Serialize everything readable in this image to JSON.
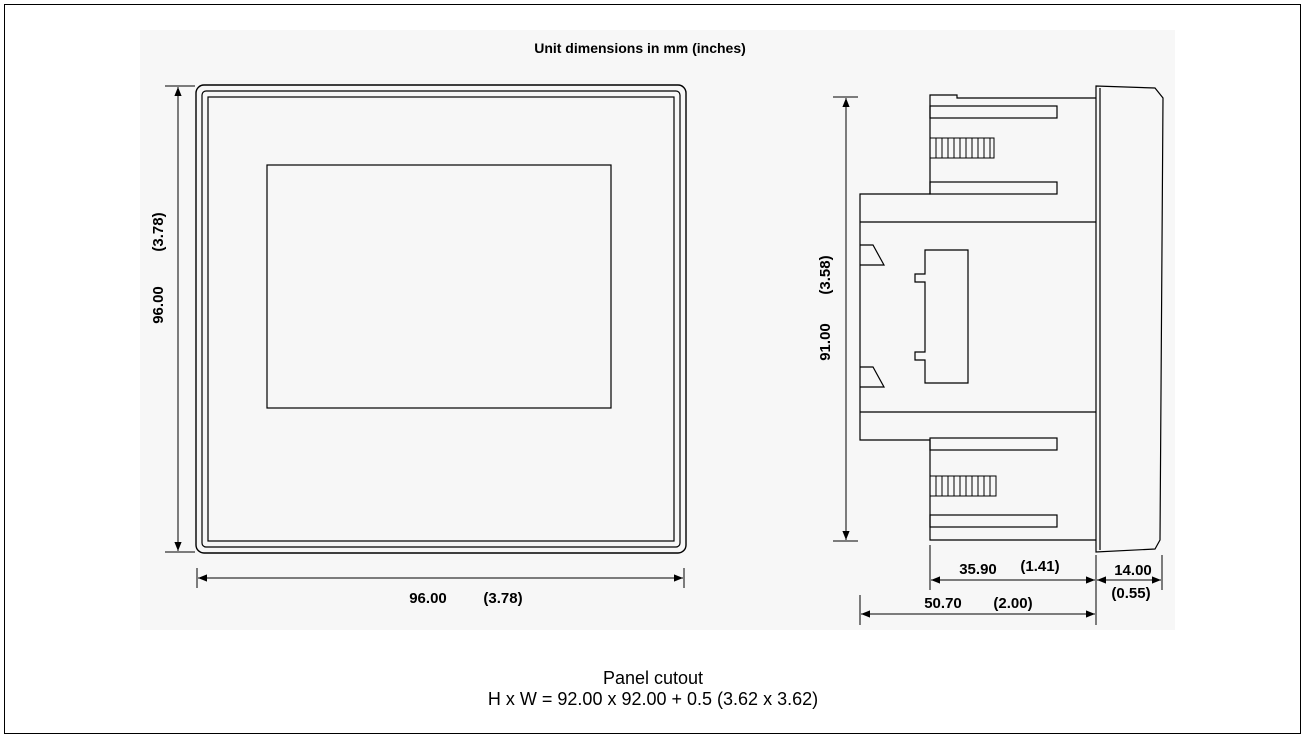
{
  "title": "Unit dimensions in mm (inches)",
  "front_view": {
    "height_mm": "96.00",
    "height_in": "(3.78)",
    "width_mm": "96.00",
    "width_in": "(3.78)"
  },
  "side_view": {
    "height_mm": "91.00",
    "height_in": "(3.58)",
    "depth_rear_mm": "35.90",
    "depth_rear_in": "(1.41)",
    "bezel_mm": "14.00",
    "bezel_in": "(0.55)",
    "depth_total_mm": "50.70",
    "depth_total_in": "(2.00)"
  },
  "panel_cutout": {
    "label": "Panel cutout",
    "formula": "H x W = 92.00 x 92.00 + 0.5 (3.62 x 3.62)"
  }
}
